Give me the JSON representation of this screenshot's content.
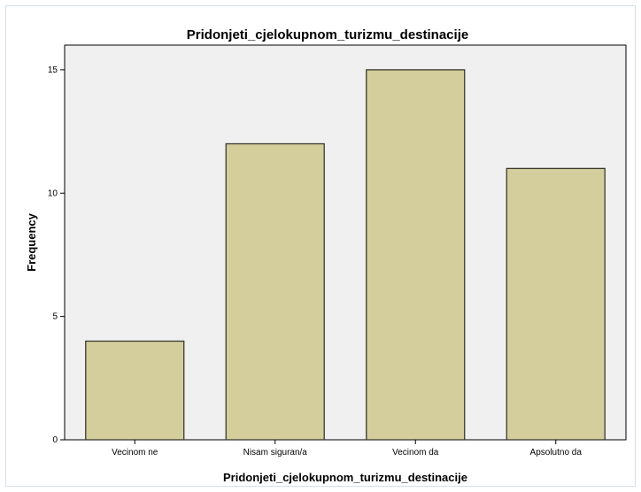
{
  "chart_data": {
    "type": "bar",
    "title": "Pridonjeti_cjelokupnom_turizmu_destinacije",
    "xlabel": "Pridonjeti_cjelokupnom_turizmu_destinacije",
    "ylabel": "Frequency",
    "categories": [
      "Vecinom ne",
      "Nisam siguran/a",
      "Vecinom da",
      "Apsolutno da"
    ],
    "values": [
      4,
      12,
      15,
      11
    ],
    "ylim": [
      0,
      16
    ],
    "yticks": [
      0,
      5,
      10,
      15
    ],
    "grid": false,
    "legend": "none",
    "colors": {
      "plot_background": "#f0f0f0",
      "bar_fill": "#d3ce9b",
      "bar_stroke": "#3a3a2e"
    }
  }
}
